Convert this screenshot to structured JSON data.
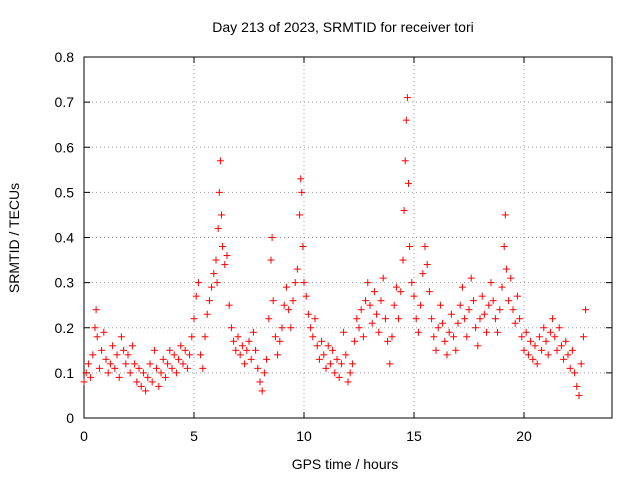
{
  "chart_data": {
    "type": "scatter",
    "title": "Day 213 of 2023, SRMTID for receiver tori",
    "xlabel": "GPS time / hours",
    "ylabel": "SRMTID / TECUs",
    "xlim": [
      0,
      24
    ],
    "ylim": [
      0,
      0.8
    ],
    "xticks": [
      0,
      5,
      10,
      15,
      20
    ],
    "yticks": [
      0,
      0.1,
      0.2,
      0.3,
      0.4,
      0.5,
      0.6,
      0.7,
      0.8
    ],
    "grid": true,
    "marker": "plus",
    "color": "#ff0000",
    "series": [
      {
        "name": "SRMTID",
        "points": [
          [
            0.0,
            0.08
          ],
          [
            0.1,
            0.1
          ],
          [
            0.2,
            0.12
          ],
          [
            0.3,
            0.09
          ],
          [
            0.4,
            0.14
          ],
          [
            0.5,
            0.2
          ],
          [
            0.55,
            0.24
          ],
          [
            0.6,
            0.18
          ],
          [
            0.7,
            0.11
          ],
          [
            0.8,
            0.15
          ],
          [
            0.9,
            0.19
          ],
          [
            1.0,
            0.13
          ],
          [
            1.1,
            0.1
          ],
          [
            1.2,
            0.12
          ],
          [
            1.3,
            0.16
          ],
          [
            1.4,
            0.11
          ],
          [
            1.5,
            0.14
          ],
          [
            1.6,
            0.09
          ],
          [
            1.7,
            0.18
          ],
          [
            1.8,
            0.15
          ],
          [
            1.9,
            0.12
          ],
          [
            2.0,
            0.14
          ],
          [
            2.1,
            0.1
          ],
          [
            2.2,
            0.16
          ],
          [
            2.3,
            0.12
          ],
          [
            2.4,
            0.08
          ],
          [
            2.5,
            0.11
          ],
          [
            2.6,
            0.07
          ],
          [
            2.7,
            0.1
          ],
          [
            2.8,
            0.06
          ],
          [
            2.9,
            0.09
          ],
          [
            3.0,
            0.12
          ],
          [
            3.1,
            0.08
          ],
          [
            3.2,
            0.15
          ],
          [
            3.3,
            0.11
          ],
          [
            3.4,
            0.07
          ],
          [
            3.5,
            0.1
          ],
          [
            3.6,
            0.13
          ],
          [
            3.7,
            0.09
          ],
          [
            3.8,
            0.12
          ],
          [
            3.9,
            0.15
          ],
          [
            4.0,
            0.11
          ],
          [
            4.1,
            0.14
          ],
          [
            4.2,
            0.1
          ],
          [
            4.3,
            0.13
          ],
          [
            4.4,
            0.16
          ],
          [
            4.5,
            0.12
          ],
          [
            4.6,
            0.15
          ],
          [
            4.7,
            0.11
          ],
          [
            4.8,
            0.14
          ],
          [
            4.9,
            0.18
          ],
          [
            5.0,
            0.22
          ],
          [
            5.1,
            0.27
          ],
          [
            5.2,
            0.3
          ],
          [
            5.3,
            0.14
          ],
          [
            5.4,
            0.11
          ],
          [
            5.5,
            0.18
          ],
          [
            5.6,
            0.23
          ],
          [
            5.7,
            0.26
          ],
          [
            5.8,
            0.29
          ],
          [
            5.9,
            0.32
          ],
          [
            6.0,
            0.35
          ],
          [
            6.05,
            0.3
          ],
          [
            6.1,
            0.42
          ],
          [
            6.15,
            0.5
          ],
          [
            6.2,
            0.57
          ],
          [
            6.25,
            0.45
          ],
          [
            6.3,
            0.38
          ],
          [
            6.4,
            0.34
          ],
          [
            6.5,
            0.36
          ],
          [
            6.6,
            0.25
          ],
          [
            6.7,
            0.2
          ],
          [
            6.8,
            0.17
          ],
          [
            6.9,
            0.15
          ],
          [
            7.0,
            0.18
          ],
          [
            7.1,
            0.14
          ],
          [
            7.2,
            0.16
          ],
          [
            7.3,
            0.12
          ],
          [
            7.4,
            0.15
          ],
          [
            7.5,
            0.17
          ],
          [
            7.6,
            0.13
          ],
          [
            7.7,
            0.19
          ],
          [
            7.8,
            0.15
          ],
          [
            7.9,
            0.11
          ],
          [
            8.0,
            0.08
          ],
          [
            8.1,
            0.06
          ],
          [
            8.2,
            0.1
          ],
          [
            8.3,
            0.13
          ],
          [
            8.4,
            0.22
          ],
          [
            8.5,
            0.35
          ],
          [
            8.55,
            0.4
          ],
          [
            8.6,
            0.26
          ],
          [
            8.7,
            0.18
          ],
          [
            8.8,
            0.14
          ],
          [
            8.9,
            0.17
          ],
          [
            9.0,
            0.2
          ],
          [
            9.1,
            0.25
          ],
          [
            9.2,
            0.29
          ],
          [
            9.3,
            0.24
          ],
          [
            9.4,
            0.2
          ],
          [
            9.5,
            0.26
          ],
          [
            9.6,
            0.3
          ],
          [
            9.7,
            0.33
          ],
          [
            9.8,
            0.45
          ],
          [
            9.85,
            0.53
          ],
          [
            9.9,
            0.5
          ],
          [
            9.95,
            0.38
          ],
          [
            10.0,
            0.3
          ],
          [
            10.1,
            0.27
          ],
          [
            10.2,
            0.23
          ],
          [
            10.3,
            0.2
          ],
          [
            10.4,
            0.18
          ],
          [
            10.5,
            0.22
          ],
          [
            10.6,
            0.16
          ],
          [
            10.7,
            0.13
          ],
          [
            10.8,
            0.17
          ],
          [
            10.9,
            0.14
          ],
          [
            11.0,
            0.11
          ],
          [
            11.1,
            0.16
          ],
          [
            11.2,
            0.12
          ],
          [
            11.3,
            0.15
          ],
          [
            11.4,
            0.1
          ],
          [
            11.5,
            0.13
          ],
          [
            11.6,
            0.09
          ],
          [
            11.7,
            0.12
          ],
          [
            11.8,
            0.19
          ],
          [
            11.9,
            0.14
          ],
          [
            12.0,
            0.08
          ],
          [
            12.1,
            0.1
          ],
          [
            12.2,
            0.12
          ],
          [
            12.3,
            0.17
          ],
          [
            12.4,
            0.22
          ],
          [
            12.5,
            0.2
          ],
          [
            12.6,
            0.24
          ],
          [
            12.7,
            0.18
          ],
          [
            12.8,
            0.26
          ],
          [
            12.9,
            0.3
          ],
          [
            13.0,
            0.25
          ],
          [
            13.1,
            0.21
          ],
          [
            13.2,
            0.28
          ],
          [
            13.3,
            0.23
          ],
          [
            13.4,
            0.19
          ],
          [
            13.5,
            0.26
          ],
          [
            13.6,
            0.31
          ],
          [
            13.7,
            0.22
          ],
          [
            13.8,
            0.17
          ],
          [
            13.9,
            0.12
          ],
          [
            14.0,
            0.18
          ],
          [
            14.1,
            0.25
          ],
          [
            14.2,
            0.29
          ],
          [
            14.3,
            0.22
          ],
          [
            14.4,
            0.28
          ],
          [
            14.5,
            0.35
          ],
          [
            14.55,
            0.46
          ],
          [
            14.6,
            0.57
          ],
          [
            14.65,
            0.66
          ],
          [
            14.7,
            0.71
          ],
          [
            14.75,
            0.52
          ],
          [
            14.8,
            0.38
          ],
          [
            14.9,
            0.3
          ],
          [
            15.0,
            0.27
          ],
          [
            15.1,
            0.22
          ],
          [
            15.2,
            0.19
          ],
          [
            15.3,
            0.25
          ],
          [
            15.4,
            0.32
          ],
          [
            15.5,
            0.38
          ],
          [
            15.6,
            0.34
          ],
          [
            15.7,
            0.28
          ],
          [
            15.8,
            0.22
          ],
          [
            15.9,
            0.18
          ],
          [
            16.0,
            0.15
          ],
          [
            16.1,
            0.2
          ],
          [
            16.2,
            0.25
          ],
          [
            16.3,
            0.21
          ],
          [
            16.4,
            0.17
          ],
          [
            16.5,
            0.14
          ],
          [
            16.6,
            0.19
          ],
          [
            16.7,
            0.23
          ],
          [
            16.8,
            0.18
          ],
          [
            16.9,
            0.15
          ],
          [
            17.0,
            0.21
          ],
          [
            17.1,
            0.25
          ],
          [
            17.2,
            0.29
          ],
          [
            17.3,
            0.22
          ],
          [
            17.4,
            0.18
          ],
          [
            17.5,
            0.24
          ],
          [
            17.6,
            0.31
          ],
          [
            17.7,
            0.26
          ],
          [
            17.8,
            0.2
          ],
          [
            17.9,
            0.16
          ],
          [
            18.0,
            0.22
          ],
          [
            18.1,
            0.27
          ],
          [
            18.2,
            0.23
          ],
          [
            18.3,
            0.19
          ],
          [
            18.4,
            0.25
          ],
          [
            18.5,
            0.3
          ],
          [
            18.6,
            0.26
          ],
          [
            18.7,
            0.22
          ],
          [
            18.8,
            0.19
          ],
          [
            18.9,
            0.24
          ],
          [
            19.0,
            0.29
          ],
          [
            19.1,
            0.38
          ],
          [
            19.15,
            0.45
          ],
          [
            19.2,
            0.33
          ],
          [
            19.3,
            0.26
          ],
          [
            19.4,
            0.31
          ],
          [
            19.5,
            0.24
          ],
          [
            19.6,
            0.21
          ],
          [
            19.7,
            0.27
          ],
          [
            19.8,
            0.22
          ],
          [
            19.9,
            0.18
          ],
          [
            20.0,
            0.15
          ],
          [
            20.1,
            0.19
          ],
          [
            20.2,
            0.14
          ],
          [
            20.3,
            0.17
          ],
          [
            20.4,
            0.13
          ],
          [
            20.5,
            0.16
          ],
          [
            20.6,
            0.12
          ],
          [
            20.7,
            0.18
          ],
          [
            20.8,
            0.15
          ],
          [
            20.9,
            0.2
          ],
          [
            21.0,
            0.17
          ],
          [
            21.1,
            0.14
          ],
          [
            21.2,
            0.19
          ],
          [
            21.3,
            0.22
          ],
          [
            21.4,
            0.18
          ],
          [
            21.5,
            0.15
          ],
          [
            21.6,
            0.2
          ],
          [
            21.7,
            0.16
          ],
          [
            21.8,
            0.13
          ],
          [
            21.9,
            0.17
          ],
          [
            22.0,
            0.14
          ],
          [
            22.1,
            0.11
          ],
          [
            22.2,
            0.15
          ],
          [
            22.3,
            0.1
          ],
          [
            22.4,
            0.07
          ],
          [
            22.5,
            0.05
          ],
          [
            22.6,
            0.12
          ],
          [
            22.7,
            0.18
          ],
          [
            22.8,
            0.24
          ]
        ]
      }
    ]
  }
}
